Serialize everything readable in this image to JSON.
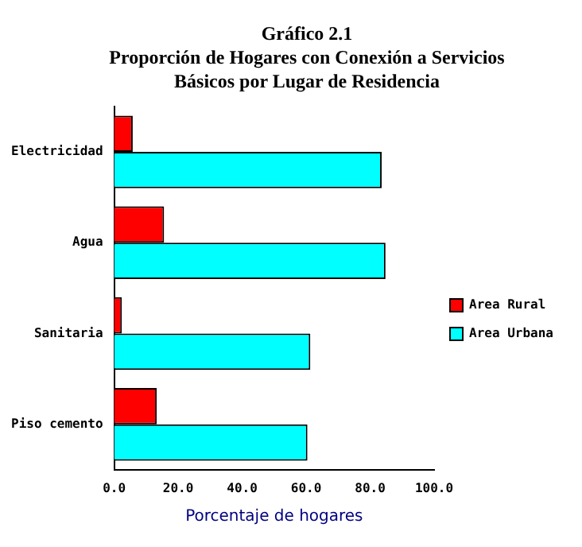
{
  "chart_data": {
    "type": "bar",
    "orientation": "horizontal",
    "title": "Gráfico 2.1",
    "subtitle": "Proporción de Hogares con Conexión a Servicios Básicos por Lugar de Residencia",
    "xlabel": "Porcentaje de hogares",
    "categories": [
      "Electricidad",
      "Agua",
      "Sanitaria",
      "Piso cemento"
    ],
    "series": [
      {
        "name": "Area Rural",
        "color": "#ff0000",
        "values": [
          5.8,
          15.6,
          2.4,
          13.3
        ]
      },
      {
        "name": "Area Urbana",
        "color": "#00ffff",
        "values": [
          83.6,
          84.8,
          61.3,
          60.4
        ]
      }
    ],
    "xlim": [
      0,
      100
    ],
    "xticks": [
      {
        "value": 0,
        "label": "0.0"
      },
      {
        "value": 20,
        "label": "20.0"
      },
      {
        "value": 40,
        "label": "40.0"
      },
      {
        "value": 60,
        "label": "60.0"
      },
      {
        "value": 80,
        "label": "80.0"
      },
      {
        "value": 100,
        "label": "100.0"
      }
    ],
    "grid": false,
    "legend": "right"
  }
}
